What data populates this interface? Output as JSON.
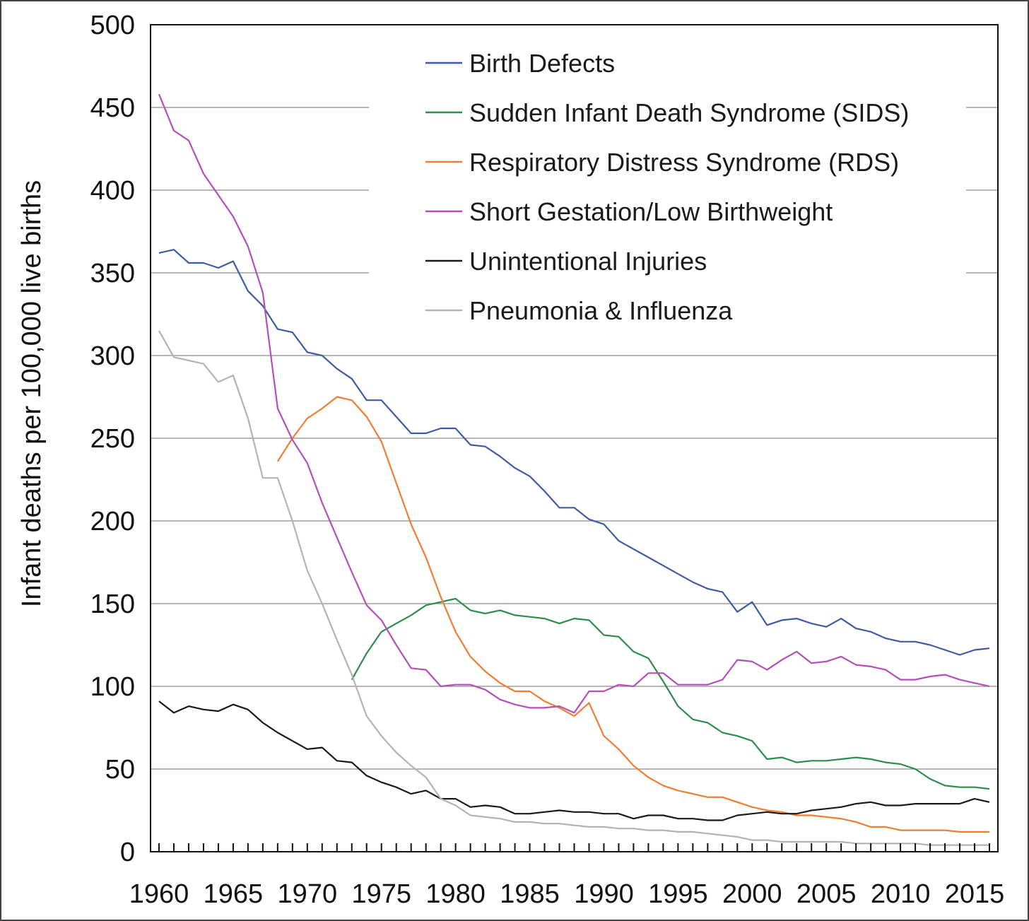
{
  "chart_data": {
    "type": "line",
    "title": "",
    "xlabel": "",
    "ylabel": "Infant deaths per 100,000 live births",
    "xlim": [
      1960,
      2016
    ],
    "ylim": [
      0,
      500
    ],
    "grid": "horizontal",
    "legend_position": "top-center",
    "x_ticks": [
      1960,
      1965,
      1970,
      1975,
      1980,
      1985,
      1990,
      1995,
      2000,
      2005,
      2010,
      2015
    ],
    "y_ticks": [
      0,
      50,
      100,
      150,
      200,
      250,
      300,
      350,
      400,
      450,
      500
    ],
    "series": [
      {
        "name": "Birth Defects",
        "color": "#3e5ba6",
        "x": [
          1960,
          1961,
          1962,
          1963,
          1964,
          1965,
          1966,
          1967,
          1968,
          1969,
          1970,
          1971,
          1972,
          1973,
          1974,
          1975,
          1976,
          1977,
          1978,
          1979,
          1980,
          1981,
          1982,
          1983,
          1984,
          1985,
          1986,
          1987,
          1988,
          1989,
          1990,
          1991,
          1992,
          1993,
          1994,
          1995,
          1996,
          1997,
          1998,
          1999,
          2000,
          2001,
          2002,
          2003,
          2004,
          2005,
          2006,
          2007,
          2008,
          2009,
          2010,
          2011,
          2012,
          2013,
          2014,
          2015,
          2016
        ],
        "y": [
          362,
          364,
          356,
          356,
          353,
          357,
          339,
          330,
          316,
          314,
          302,
          300,
          292,
          286,
          273,
          273,
          263,
          253,
          253,
          256,
          256,
          246,
          245,
          239,
          232,
          227,
          218,
          208,
          208,
          201,
          198,
          188,
          183,
          178,
          173,
          168,
          163,
          159,
          157,
          145,
          151,
          137,
          140,
          141,
          138,
          136,
          141,
          135,
          133,
          129,
          127,
          127,
          125,
          122,
          119,
          122,
          123
        ]
      },
      {
        "name": "Sudden Infant Death Syndrome (SIDS)",
        "color": "#2e8c4f",
        "x": [
          1973,
          1974,
          1975,
          1976,
          1977,
          1978,
          1979,
          1980,
          1981,
          1982,
          1983,
          1984,
          1985,
          1986,
          1987,
          1988,
          1989,
          1990,
          1991,
          1992,
          1993,
          1994,
          1995,
          1996,
          1997,
          1998,
          1999,
          2000,
          2001,
          2002,
          2003,
          2004,
          2005,
          2006,
          2007,
          2008,
          2009,
          2010,
          2011,
          2012,
          2013,
          2014,
          2015,
          2016
        ],
        "y": [
          104,
          120,
          133,
          138,
          143,
          149,
          151,
          153,
          146,
          144,
          146,
          143,
          142,
          141,
          138,
          141,
          140,
          131,
          130,
          121,
          117,
          103,
          88,
          80,
          78,
          72,
          70,
          67,
          56,
          57,
          54,
          55,
          55,
          56,
          57,
          56,
          54,
          53,
          50,
          44,
          40,
          39,
          39,
          38
        ]
      },
      {
        "name": "Respiratory Distress Syndrome (RDS)",
        "color": "#f07d32",
        "x": [
          1968,
          1969,
          1970,
          1971,
          1972,
          1973,
          1974,
          1975,
          1976,
          1977,
          1978,
          1979,
          1980,
          1981,
          1982,
          1983,
          1984,
          1985,
          1986,
          1987,
          1988,
          1989,
          1990,
          1991,
          1992,
          1993,
          1994,
          1995,
          1996,
          1997,
          1998,
          1999,
          2000,
          2001,
          2002,
          2003,
          2004,
          2005,
          2006,
          2007,
          2008,
          2009,
          2010,
          2011,
          2012,
          2013,
          2014,
          2015,
          2016
        ],
        "y": [
          236,
          250,
          262,
          268,
          275,
          273,
          263,
          248,
          223,
          198,
          178,
          154,
          133,
          118,
          109,
          102,
          97,
          97,
          91,
          87,
          82,
          90,
          70,
          62,
          52,
          45,
          40,
          37,
          35,
          33,
          33,
          30,
          27,
          25,
          24,
          22,
          22,
          21,
          20,
          18,
          15,
          15,
          13,
          13,
          13,
          13,
          12,
          12,
          12
        ]
      },
      {
        "name": "Short Gestation/Low Birthweight",
        "color": "#b44fb8",
        "x": [
          1960,
          1961,
          1962,
          1963,
          1964,
          1965,
          1966,
          1967,
          1968,
          1969,
          1970,
          1971,
          1972,
          1973,
          1974,
          1975,
          1976,
          1977,
          1978,
          1979,
          1980,
          1981,
          1982,
          1983,
          1984,
          1985,
          1986,
          1987,
          1988,
          1989,
          1990,
          1991,
          1992,
          1993,
          1994,
          1995,
          1996,
          1997,
          1998,
          1999,
          2000,
          2001,
          2002,
          2003,
          2004,
          2005,
          2006,
          2007,
          2008,
          2009,
          2010,
          2011,
          2012,
          2013,
          2014,
          2015,
          2016
        ],
        "y": [
          458,
          436,
          430,
          410,
          397,
          384,
          366,
          338,
          268,
          249,
          235,
          211,
          190,
          169,
          149,
          140,
          125,
          111,
          110,
          100,
          101,
          101,
          98,
          92,
          89,
          87,
          87,
          88,
          84,
          97,
          97,
          101,
          100,
          108,
          108,
          101,
          101,
          101,
          104,
          116,
          115,
          110,
          116,
          121,
          114,
          115,
          118,
          113,
          112,
          110,
          104,
          104,
          106,
          107,
          104,
          102,
          100
        ]
      },
      {
        "name": "Unintentional Injuries",
        "color": "#1a1a1a",
        "x": [
          1960,
          1961,
          1962,
          1963,
          1964,
          1965,
          1966,
          1967,
          1968,
          1969,
          1970,
          1971,
          1972,
          1973,
          1974,
          1975,
          1976,
          1977,
          1978,
          1979,
          1980,
          1981,
          1982,
          1983,
          1984,
          1985,
          1986,
          1987,
          1988,
          1989,
          1990,
          1991,
          1992,
          1993,
          1994,
          1995,
          1996,
          1997,
          1998,
          1999,
          2000,
          2001,
          2002,
          2003,
          2004,
          2005,
          2006,
          2007,
          2008,
          2009,
          2010,
          2011,
          2012,
          2013,
          2014,
          2015,
          2016
        ],
        "y": [
          91,
          84,
          88,
          86,
          85,
          89,
          86,
          78,
          72,
          67,
          62,
          63,
          55,
          54,
          46,
          42,
          39,
          35,
          37,
          32,
          32,
          27,
          28,
          27,
          23,
          23,
          24,
          25,
          24,
          24,
          23,
          23,
          20,
          22,
          22,
          20,
          20,
          19,
          19,
          22,
          23,
          24,
          23,
          23,
          25,
          26,
          27,
          29,
          30,
          28,
          28,
          29,
          29,
          29,
          29,
          32,
          30
        ]
      },
      {
        "name": "Pneumonia & Influenza",
        "color": "#b3b3b3",
        "x": [
          1960,
          1961,
          1962,
          1963,
          1964,
          1965,
          1966,
          1967,
          1968,
          1969,
          1970,
          1971,
          1972,
          1973,
          1974,
          1975,
          1976,
          1977,
          1978,
          1979,
          1980,
          1981,
          1982,
          1983,
          1984,
          1985,
          1986,
          1987,
          1988,
          1989,
          1990,
          1991,
          1992,
          1993,
          1994,
          1995,
          1996,
          1997,
          1998,
          1999,
          2000,
          2001,
          2002,
          2003,
          2004,
          2005,
          2006,
          2007,
          2008,
          2009,
          2010,
          2011,
          2012,
          2013,
          2014,
          2015,
          2016
        ],
        "y": [
          315,
          299,
          297,
          295,
          284,
          288,
          262,
          226,
          226,
          200,
          170,
          150,
          128,
          107,
          82,
          70,
          60,
          52,
          45,
          32,
          28,
          22,
          21,
          20,
          18,
          18,
          17,
          17,
          16,
          15,
          15,
          14,
          14,
          13,
          13,
          12,
          12,
          11,
          10,
          9,
          7,
          7,
          6,
          6,
          6,
          6,
          6,
          5,
          5,
          5,
          5,
          5,
          4,
          4,
          4,
          4,
          4
        ]
      }
    ]
  }
}
